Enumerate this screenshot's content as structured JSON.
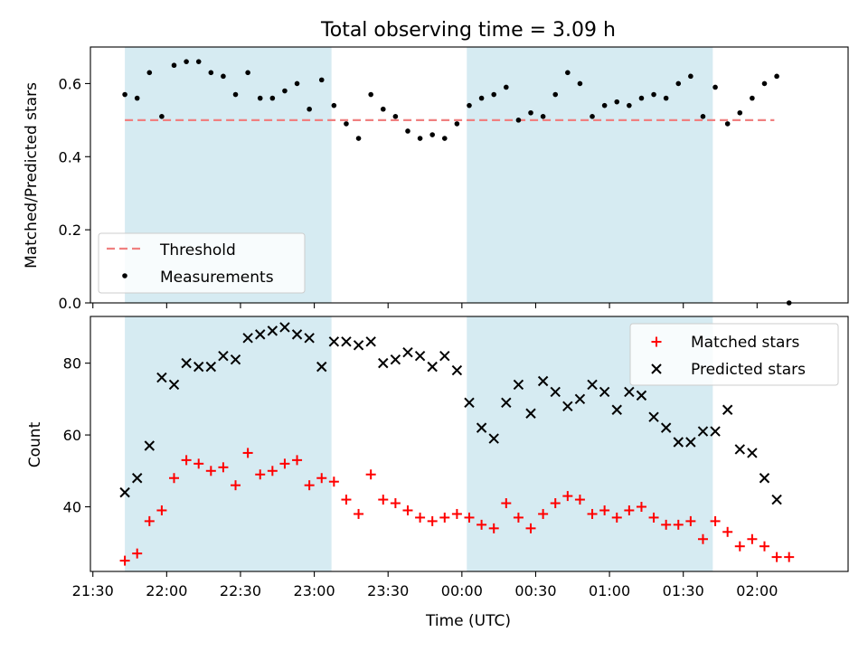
{
  "figure": {
    "title": "Total observing time = 3.09 h"
  },
  "chart_data": [
    {
      "type": "scatter",
      "panel": "top",
      "xlabel": "",
      "ylabel": "Matched/Predicted stars",
      "ylim": [
        0,
        0.7
      ],
      "yticks": [
        0.0,
        0.2,
        0.4,
        0.6
      ],
      "ytick_labels": [
        "0.0",
        "0.2",
        "0.4",
        "0.6"
      ],
      "grid": false,
      "legend": "lower-left",
      "shaded_ranges": [
        [
          "21:43",
          "23:07"
        ],
        [
          "00:02",
          "01:42"
        ]
      ],
      "threshold": {
        "name": "Threshold",
        "y": 0.5,
        "x_range": [
          "21:43",
          "02:07"
        ],
        "color": "#f08080"
      },
      "series": [
        {
          "name": "Measurements",
          "marker": "dot",
          "color": "#000000",
          "points": [
            [
              "21:43",
              0.57
            ],
            [
              "21:48",
              0.56
            ],
            [
              "21:53",
              0.63
            ],
            [
              "21:58",
              0.51
            ],
            [
              "22:03",
              0.65
            ],
            [
              "22:08",
              0.66
            ],
            [
              "22:13",
              0.66
            ],
            [
              "22:18",
              0.63
            ],
            [
              "22:23",
              0.62
            ],
            [
              "22:28",
              0.57
            ],
            [
              "22:33",
              0.63
            ],
            [
              "22:38",
              0.56
            ],
            [
              "22:43",
              0.56
            ],
            [
              "22:48",
              0.58
            ],
            [
              "22:53",
              0.6
            ],
            [
              "22:58",
              0.53
            ],
            [
              "23:03",
              0.61
            ],
            [
              "23:08",
              0.54
            ],
            [
              "23:13",
              0.49
            ],
            [
              "23:18",
              0.45
            ],
            [
              "23:23",
              0.57
            ],
            [
              "23:28",
              0.53
            ],
            [
              "23:33",
              0.51
            ],
            [
              "23:38",
              0.47
            ],
            [
              "23:43",
              0.45
            ],
            [
              "23:48",
              0.46
            ],
            [
              "23:53",
              0.45
            ],
            [
              "23:58",
              0.49
            ],
            [
              "00:03",
              0.54
            ],
            [
              "00:08",
              0.56
            ],
            [
              "00:13",
              0.57
            ],
            [
              "00:18",
              0.59
            ],
            [
              "00:23",
              0.5
            ],
            [
              "00:28",
              0.52
            ],
            [
              "00:33",
              0.51
            ],
            [
              "00:38",
              0.57
            ],
            [
              "00:43",
              0.63
            ],
            [
              "00:48",
              0.6
            ],
            [
              "00:53",
              0.51
            ],
            [
              "00:58",
              0.54
            ],
            [
              "01:03",
              0.55
            ],
            [
              "01:08",
              0.54
            ],
            [
              "01:13",
              0.56
            ],
            [
              "01:18",
              0.57
            ],
            [
              "01:23",
              0.56
            ],
            [
              "01:28",
              0.6
            ],
            [
              "01:33",
              0.62
            ],
            [
              "01:38",
              0.51
            ],
            [
              "01:43",
              0.59
            ],
            [
              "01:48",
              0.49
            ],
            [
              "01:53",
              0.52
            ],
            [
              "01:58",
              0.56
            ],
            [
              "02:03",
              0.6
            ],
            [
              "02:08",
              0.62
            ],
            [
              "02:13",
              0.0
            ]
          ]
        }
      ]
    },
    {
      "type": "scatter",
      "panel": "bottom",
      "xlabel": "Time (UTC)",
      "ylabel": "Count",
      "ylim": [
        22,
        93
      ],
      "yticks": [
        40,
        60,
        80
      ],
      "xtick_labels": [
        "21:30",
        "22:00",
        "22:30",
        "23:00",
        "23:30",
        "00:00",
        "00:30",
        "01:00",
        "01:30",
        "02:00"
      ],
      "xlim": [
        "21:29",
        "02:37"
      ],
      "grid": false,
      "legend": "top-right",
      "shaded_ranges": [
        [
          "21:43",
          "23:07"
        ],
        [
          "00:02",
          "01:42"
        ]
      ],
      "x": [
        "21:43",
        "21:48",
        "21:53",
        "21:58",
        "22:03",
        "22:08",
        "22:13",
        "22:18",
        "22:23",
        "22:28",
        "22:33",
        "22:38",
        "22:43",
        "22:48",
        "22:53",
        "22:58",
        "23:03",
        "23:08",
        "23:13",
        "23:18",
        "23:23",
        "23:28",
        "23:33",
        "23:38",
        "23:43",
        "23:48",
        "23:53",
        "23:58",
        "00:03",
        "00:08",
        "00:13",
        "00:18",
        "00:23",
        "00:28",
        "00:33",
        "00:38",
        "00:43",
        "00:48",
        "00:53",
        "00:58",
        "01:03",
        "01:08",
        "01:13",
        "01:18",
        "01:23",
        "01:28",
        "01:33",
        "01:38",
        "01:43",
        "01:48",
        "01:53",
        "01:58",
        "02:03",
        "02:08",
        "02:13"
      ],
      "series": [
        {
          "name": "Matched stars",
          "marker": "plus",
          "color": "#ff0000",
          "values": [
            25,
            27,
            36,
            39,
            48,
            53,
            52,
            50,
            51,
            46,
            55,
            49,
            50,
            52,
            53,
            46,
            48,
            47,
            42,
            38,
            49,
            42,
            41,
            39,
            37,
            36,
            37,
            38,
            37,
            35,
            34,
            41,
            37,
            34,
            38,
            41,
            43,
            42,
            38,
            39,
            37,
            39,
            40,
            37,
            35,
            35,
            36,
            31,
            36,
            33,
            29,
            31,
            29,
            26,
            26
          ]
        },
        {
          "name": "Predicted stars",
          "marker": "x",
          "color": "#000000",
          "values": [
            44,
            48,
            57,
            76,
            74,
            80,
            79,
            79,
            82,
            81,
            87,
            88,
            89,
            90,
            88,
            87,
            79,
            86,
            86,
            85,
            86,
            80,
            81,
            83,
            82,
            79,
            82,
            78,
            69,
            62,
            59,
            69,
            74,
            66,
            75,
            72,
            68,
            70,
            74,
            72,
            67,
            72,
            71,
            65,
            62,
            58,
            58,
            61,
            61,
            67,
            56,
            55,
            48,
            42,
            null
          ]
        }
      ]
    }
  ]
}
